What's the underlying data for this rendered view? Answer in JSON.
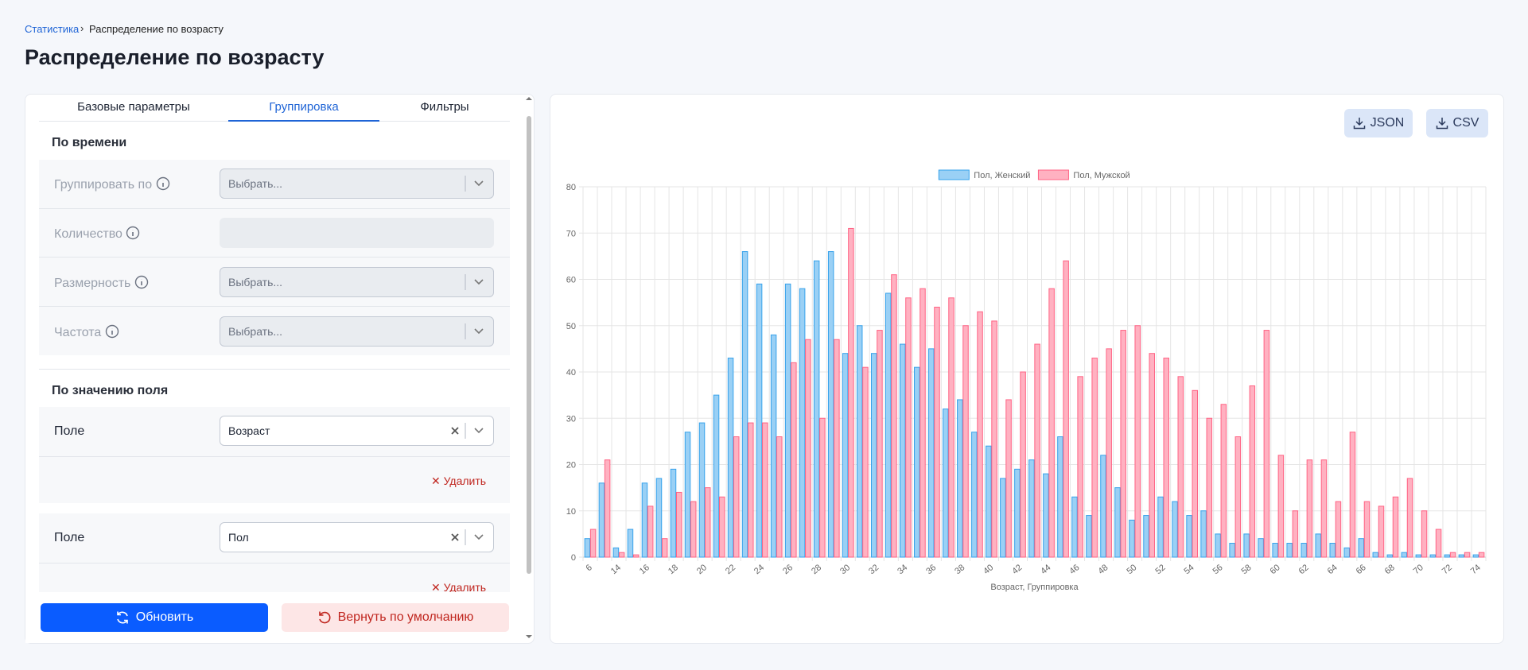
{
  "breadcrumb": {
    "link": "Статистика",
    "current": "Распределение по возрасту"
  },
  "title": "Распределение по возрасту",
  "tabs": [
    "Базовые параметры",
    "Группировка",
    "Фильтры"
  ],
  "time_group": {
    "title": "По времени",
    "fields": [
      {
        "label": "Группировать по",
        "placeholder": "Выбрать..."
      },
      {
        "label": "Количество"
      },
      {
        "label": "Размерность",
        "placeholder": "Выбрать..."
      },
      {
        "label": "Частота",
        "placeholder": "Выбрать..."
      }
    ]
  },
  "field_group": {
    "title": "По значению поля",
    "fields": [
      {
        "label": "Поле",
        "value": "Возраст",
        "remove": "Удалить"
      },
      {
        "label": "Поле",
        "value": "Пол",
        "remove": "Удалить"
      }
    ]
  },
  "buttons": {
    "update": "Обновить",
    "reset": "Вернуть по умолчанию"
  },
  "downloads": [
    "JSON",
    "CSV"
  ],
  "chart_data": {
    "type": "bar",
    "x_label": "Возраст, Группировка",
    "categories": [
      "6",
      null,
      "14",
      null,
      "16",
      null,
      "18",
      null,
      "20",
      null,
      "22",
      null,
      "24",
      null,
      "26",
      null,
      "28",
      null,
      "30",
      null,
      "32",
      null,
      "34",
      null,
      "36",
      null,
      "38",
      null,
      "40",
      null,
      "42",
      null,
      "44",
      null,
      "46",
      null,
      "48",
      null,
      "50",
      null,
      "52",
      null,
      "54",
      null,
      "56",
      null,
      "58",
      null,
      "60",
      null,
      "62",
      null,
      "64",
      null,
      "66",
      null,
      "68",
      null,
      "70",
      null,
      "72",
      null,
      "74"
    ],
    "series": [
      {
        "name": "Пол, Женский",
        "color": "#9ad0f5",
        "border": "#36a2eb",
        "values": [
          4,
          16,
          2,
          6,
          16,
          17,
          19,
          27,
          29,
          35,
          43,
          66,
          59,
          48,
          59,
          58,
          64,
          66,
          44,
          50,
          44,
          57,
          46,
          41,
          45,
          32,
          34,
          27,
          24,
          17,
          19,
          21,
          18,
          26,
          13,
          9,
          22,
          15,
          8,
          9,
          13,
          12,
          9,
          10,
          5,
          3,
          5,
          4,
          3,
          3,
          3,
          5,
          3,
          2,
          4,
          1,
          0.5,
          1,
          0.5,
          0.5,
          0.5,
          0.5,
          0.5
        ]
      },
      {
        "name": "Пол, Мужской",
        "color": "#ffb1c1",
        "border": "#ff6384",
        "values": [
          6,
          21,
          1,
          0.5,
          11,
          4,
          14,
          12,
          15,
          13,
          26,
          29,
          29,
          26,
          42,
          47,
          30,
          47,
          71,
          41,
          49,
          61,
          56,
          58,
          54,
          56,
          50,
          53,
          51,
          34,
          40,
          46,
          58,
          64,
          39,
          43,
          45,
          49,
          50,
          44,
          43,
          39,
          36,
          30,
          33,
          26,
          37,
          49,
          22,
          10,
          21,
          21,
          12,
          27,
          12,
          11,
          13,
          17,
          10,
          6,
          1,
          1,
          1
        ]
      }
    ],
    "ylim": [
      0,
      80
    ],
    "yticks": [
      0,
      10,
      20,
      30,
      40,
      50,
      60,
      70,
      80
    ],
    "grid": true,
    "legend": "top"
  }
}
